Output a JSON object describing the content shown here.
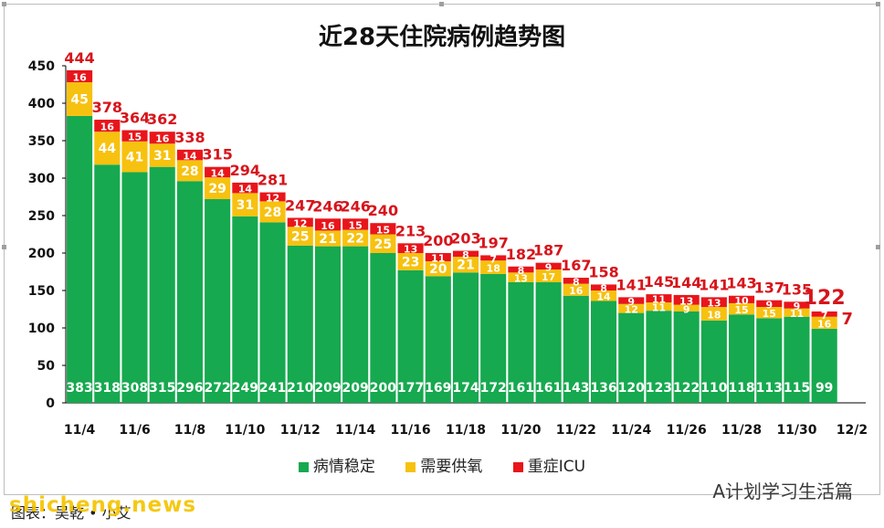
{
  "chart_data": {
    "type": "bar",
    "stacked": true,
    "title": "近28天住院病例趋势图",
    "categories": [
      "11/4",
      "11/5",
      "11/6",
      "11/7",
      "11/8",
      "11/9",
      "11/10",
      "11/11",
      "11/12",
      "11/13",
      "11/14",
      "11/15",
      "11/16",
      "11/17",
      "11/18",
      "11/19",
      "11/20",
      "11/21",
      "11/22",
      "11/23",
      "11/24",
      "11/25",
      "11/26",
      "11/27",
      "11/28",
      "11/29",
      "11/30",
      "12/1",
      "12/2"
    ],
    "xticks": [
      "11/4",
      "11/6",
      "11/8",
      "11/10",
      "11/12",
      "11/14",
      "11/16",
      "11/18",
      "11/20",
      "11/22",
      "11/24",
      "11/26",
      "11/28",
      "11/30",
      "12/2"
    ],
    "ylim": [
      0,
      450
    ],
    "yticks": [
      0,
      50,
      100,
      150,
      200,
      250,
      300,
      350,
      400,
      450
    ],
    "series": [
      {
        "name": "病情稳定",
        "color": "#16a94f",
        "values": [
          383,
          318,
          308,
          315,
          296,
          272,
          249,
          241,
          210,
          209,
          209,
          200,
          177,
          169,
          174,
          172,
          161,
          161,
          143,
          136,
          120,
          123,
          122,
          110,
          118,
          113,
          115,
          99,
          null
        ]
      },
      {
        "name": "需要供氧",
        "color": "#f7c10f",
        "values": [
          45,
          44,
          41,
          31,
          28,
          29,
          31,
          28,
          25,
          21,
          22,
          25,
          23,
          20,
          21,
          18,
          13,
          17,
          16,
          14,
          12,
          11,
          9,
          18,
          15,
          15,
          11,
          16,
          null
        ]
      },
      {
        "name": "重症ICU",
        "color": "#e8151b",
        "values": [
          16,
          16,
          15,
          16,
          14,
          14,
          14,
          12,
          12,
          16,
          15,
          15,
          13,
          11,
          8,
          7,
          8,
          9,
          8,
          8,
          9,
          11,
          13,
          13,
          10,
          9,
          9,
          7,
          null
        ]
      }
    ],
    "totals": [
      444,
      378,
      364,
      362,
      338,
      315,
      294,
      281,
      247,
      246,
      246,
      240,
      213,
      200,
      203,
      197,
      182,
      187,
      167,
      158,
      141,
      145,
      144,
      141,
      143,
      137,
      135,
      122,
      null
    ],
    "legend_position": "bottom",
    "grid": false
  },
  "watermark": "A计划学习生活篇",
  "source": "图表：吴乾 • 小艾",
  "site": "shicheng.news"
}
